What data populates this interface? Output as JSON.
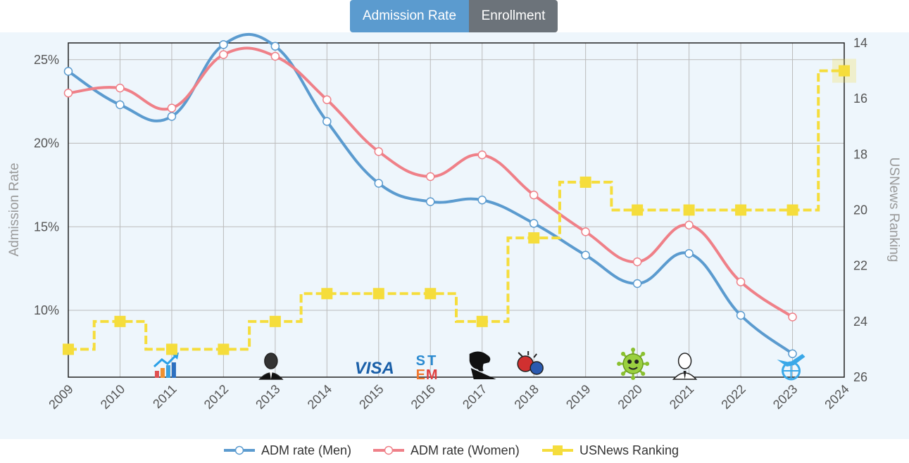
{
  "tabs": [
    {
      "label": "Admission Rate",
      "active": true
    },
    {
      "label": "Enrollment",
      "active": false
    }
  ],
  "colors": {
    "men": "#5b9bcf",
    "women": "#ef8088",
    "ranking": "#f5dd3c",
    "grid": "#bbbbbb",
    "plot_bg": "#eef6fc"
  },
  "chart_data": {
    "type": "line",
    "x": [
      "2009",
      "2010",
      "2011",
      "2012",
      "2013",
      "2014",
      "2015",
      "2016",
      "2017",
      "2018",
      "2019",
      "2020",
      "2021",
      "2022",
      "2023",
      "2024"
    ],
    "ylabel": "Admission Rate",
    "y2label": "USNews Ranking",
    "ylim": [
      6,
      26
    ],
    "y_ticks": [
      "25%",
      "20%",
      "15%",
      "10%"
    ],
    "y2lim": [
      14,
      26
    ],
    "y2_reversed": true,
    "y2_ticks": [
      "14",
      "16",
      "18",
      "20",
      "22",
      "24",
      "26"
    ],
    "grid": true,
    "legend_position": "bottom",
    "series": [
      {
        "name": "ADM rate (Men)",
        "axis": "left",
        "values": [
          24.3,
          22.3,
          21.6,
          25.9,
          25.8,
          21.3,
          17.6,
          16.5,
          16.6,
          15.2,
          13.3,
          11.6,
          13.4,
          9.7,
          7.4,
          null
        ]
      },
      {
        "name": "ADM rate (Women)",
        "axis": "left",
        "values": [
          23.0,
          23.3,
          22.1,
          25.3,
          25.2,
          22.6,
          19.5,
          18.0,
          19.3,
          16.9,
          14.7,
          12.9,
          15.1,
          11.7,
          9.6,
          null
        ]
      },
      {
        "name": "USNews Ranking",
        "axis": "right",
        "step": true,
        "values": [
          25,
          24,
          25,
          25,
          24,
          23,
          23,
          23,
          24,
          21,
          19,
          20,
          20,
          20,
          20,
          15
        ]
      }
    ],
    "event_icons": [
      {
        "year": "2011",
        "icon": "growth-chart-icon"
      },
      {
        "year": "2013",
        "icon": "obama-portrait-icon"
      },
      {
        "year": "2015",
        "icon": "visa-icon",
        "text": "VISA"
      },
      {
        "year": "2016",
        "icon": "stem-icon",
        "text": "STEM"
      },
      {
        "year": "2017",
        "icon": "trump-silhouette-icon"
      },
      {
        "year": "2018",
        "icon": "trade-war-icon"
      },
      {
        "year": "2020",
        "icon": "virus-icon"
      },
      {
        "year": "2021",
        "icon": "biden-portrait-icon"
      },
      {
        "year": "2023",
        "icon": "travel-globe-icon"
      }
    ]
  }
}
